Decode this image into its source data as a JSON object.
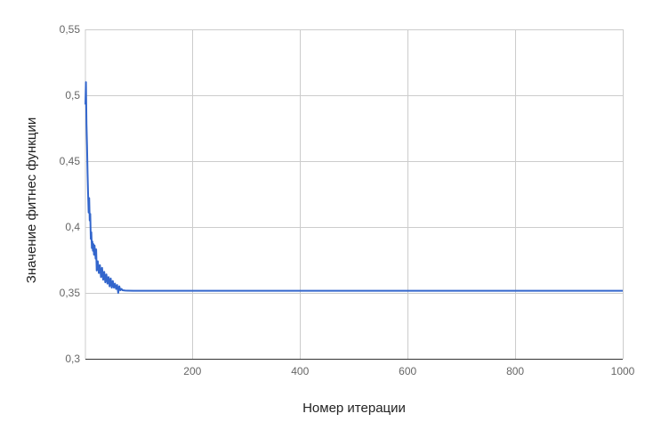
{
  "chart_data": {
    "type": "line",
    "title": "",
    "xlabel": "Номер итерации",
    "ylabel": "Значение фитнес функции",
    "xlim": [
      1,
      1000
    ],
    "ylim": [
      0.3,
      0.55
    ],
    "x_ticks": [
      200,
      400,
      600,
      800,
      1000
    ],
    "x_tick_labels": [
      "200",
      "400",
      "600",
      "800",
      "1000"
    ],
    "y_ticks": [
      0.3,
      0.35,
      0.4,
      0.45,
      0.5,
      0.55
    ],
    "y_tick_labels": [
      "0,3",
      "0,35",
      "0,4",
      "0,45",
      "0,5",
      "0,55"
    ],
    "grid": true,
    "legend": "none",
    "series_color": "#3366cc",
    "series": [
      {
        "x": [
          1,
          2,
          3,
          4,
          5,
          6,
          7,
          8,
          9,
          10,
          11,
          12,
          13,
          14,
          15,
          16,
          17,
          18,
          19,
          20,
          21,
          22,
          24,
          26,
          28,
          30,
          32,
          34,
          36,
          38,
          40,
          42,
          44,
          46,
          48,
          50,
          52,
          54,
          56,
          58,
          60,
          62,
          64,
          66,
          68,
          70,
          75,
          80,
          90,
          100,
          150,
          200,
          300,
          400,
          500,
          600,
          700,
          800,
          900,
          1000
        ],
        "y": [
          0.493,
          0.51,
          0.478,
          0.462,
          0.441,
          0.425,
          0.411,
          0.422,
          0.405,
          0.41,
          0.391,
          0.396,
          0.384,
          0.389,
          0.382,
          0.387,
          0.379,
          0.386,
          0.381,
          0.376,
          0.383,
          0.367,
          0.374,
          0.365,
          0.371,
          0.362,
          0.369,
          0.36,
          0.366,
          0.358,
          0.364,
          0.357,
          0.362,
          0.355,
          0.361,
          0.354,
          0.359,
          0.354,
          0.357,
          0.353,
          0.356,
          0.35,
          0.355,
          0.352,
          0.353,
          0.352,
          0.3518,
          0.3517,
          0.3516,
          0.3516,
          0.3516,
          0.3516,
          0.3516,
          0.3516,
          0.3516,
          0.3516,
          0.3516,
          0.3516,
          0.3516,
          0.3516
        ]
      }
    ]
  }
}
